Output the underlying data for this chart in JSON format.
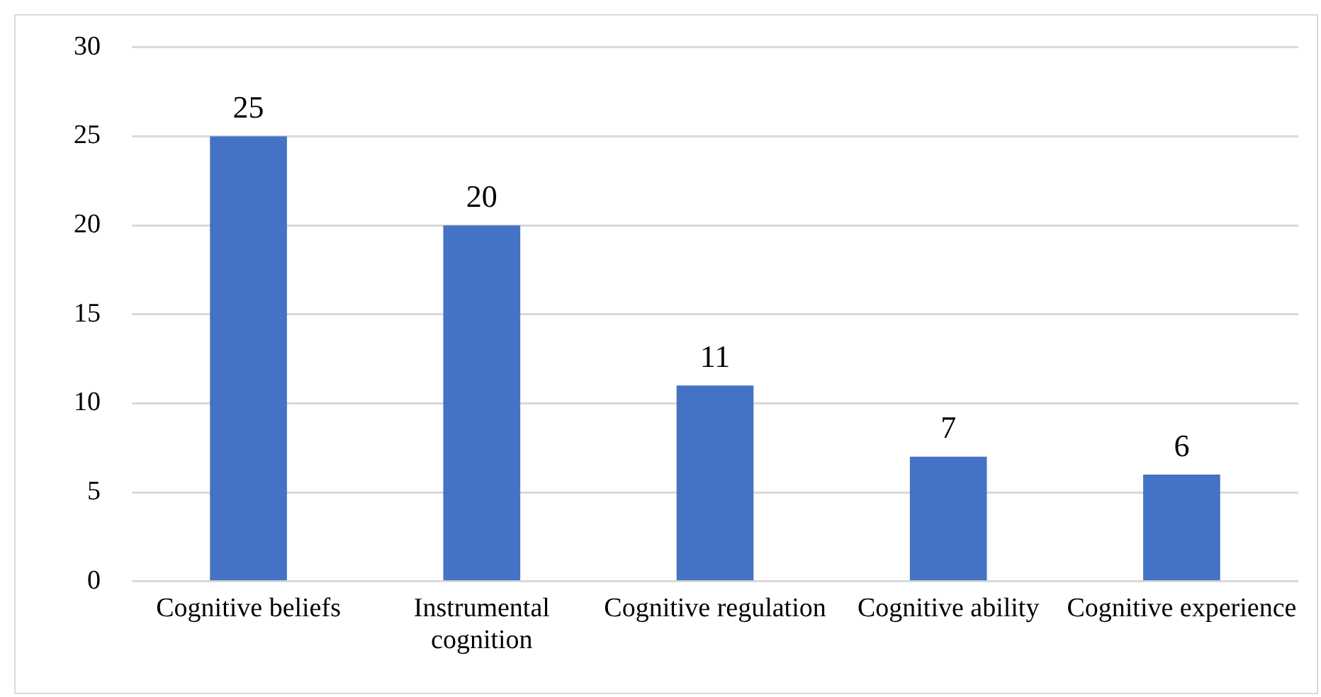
{
  "chart_data": {
    "type": "bar",
    "categories": [
      "Cognitive beliefs",
      "Instrumental cognition",
      "Cognitive regulation",
      "Cognitive ability",
      "Cognitive experience"
    ],
    "values": [
      25,
      20,
      11,
      7,
      6
    ],
    "color": "#4472c4",
    "ylim": [
      0,
      30
    ],
    "yticks": [
      0,
      5,
      10,
      15,
      20,
      25,
      30
    ],
    "grid": "y",
    "data_labels": true
  }
}
